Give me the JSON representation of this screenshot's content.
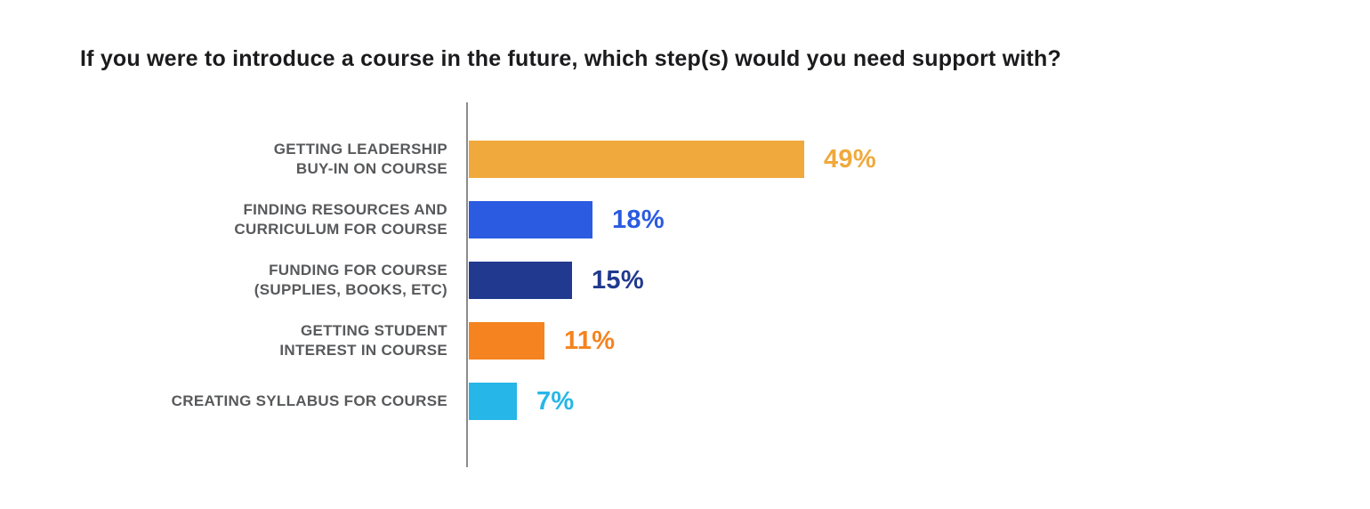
{
  "chart_data": {
    "type": "bar",
    "orientation": "horizontal",
    "title": "If you were to introduce a course in the future, which step(s) would you need support with?",
    "categories": [
      "GETTING LEADERSHIP\nBUY-IN ON COURSE",
      "FINDING RESOURCES AND\nCURRICULUM FOR COURSE",
      "FUNDING FOR COURSE\n(SUPPLIES, BOOKS, ETC)",
      "GETTING STUDENT\nINTEREST IN COURSE",
      "CREATING SYLLABUS FOR COURSE"
    ],
    "values": [
      49,
      18,
      15,
      11,
      7
    ],
    "value_labels": [
      "49%",
      "18%",
      "15%",
      "11%",
      "7%"
    ],
    "bar_colors": [
      "#F0A93C",
      "#2A5BE0",
      "#21398E",
      "#F5831F",
      "#26B6E8"
    ],
    "xlabel": "",
    "ylabel": "",
    "xlim": [
      0,
      53
    ],
    "grid": false,
    "legend": false
  },
  "styles": {
    "title_color": "#1B1B1D",
    "category_label_color": "#58595B",
    "axis_line_color": "#8C8C8C",
    "background": "#FFFFFF"
  }
}
